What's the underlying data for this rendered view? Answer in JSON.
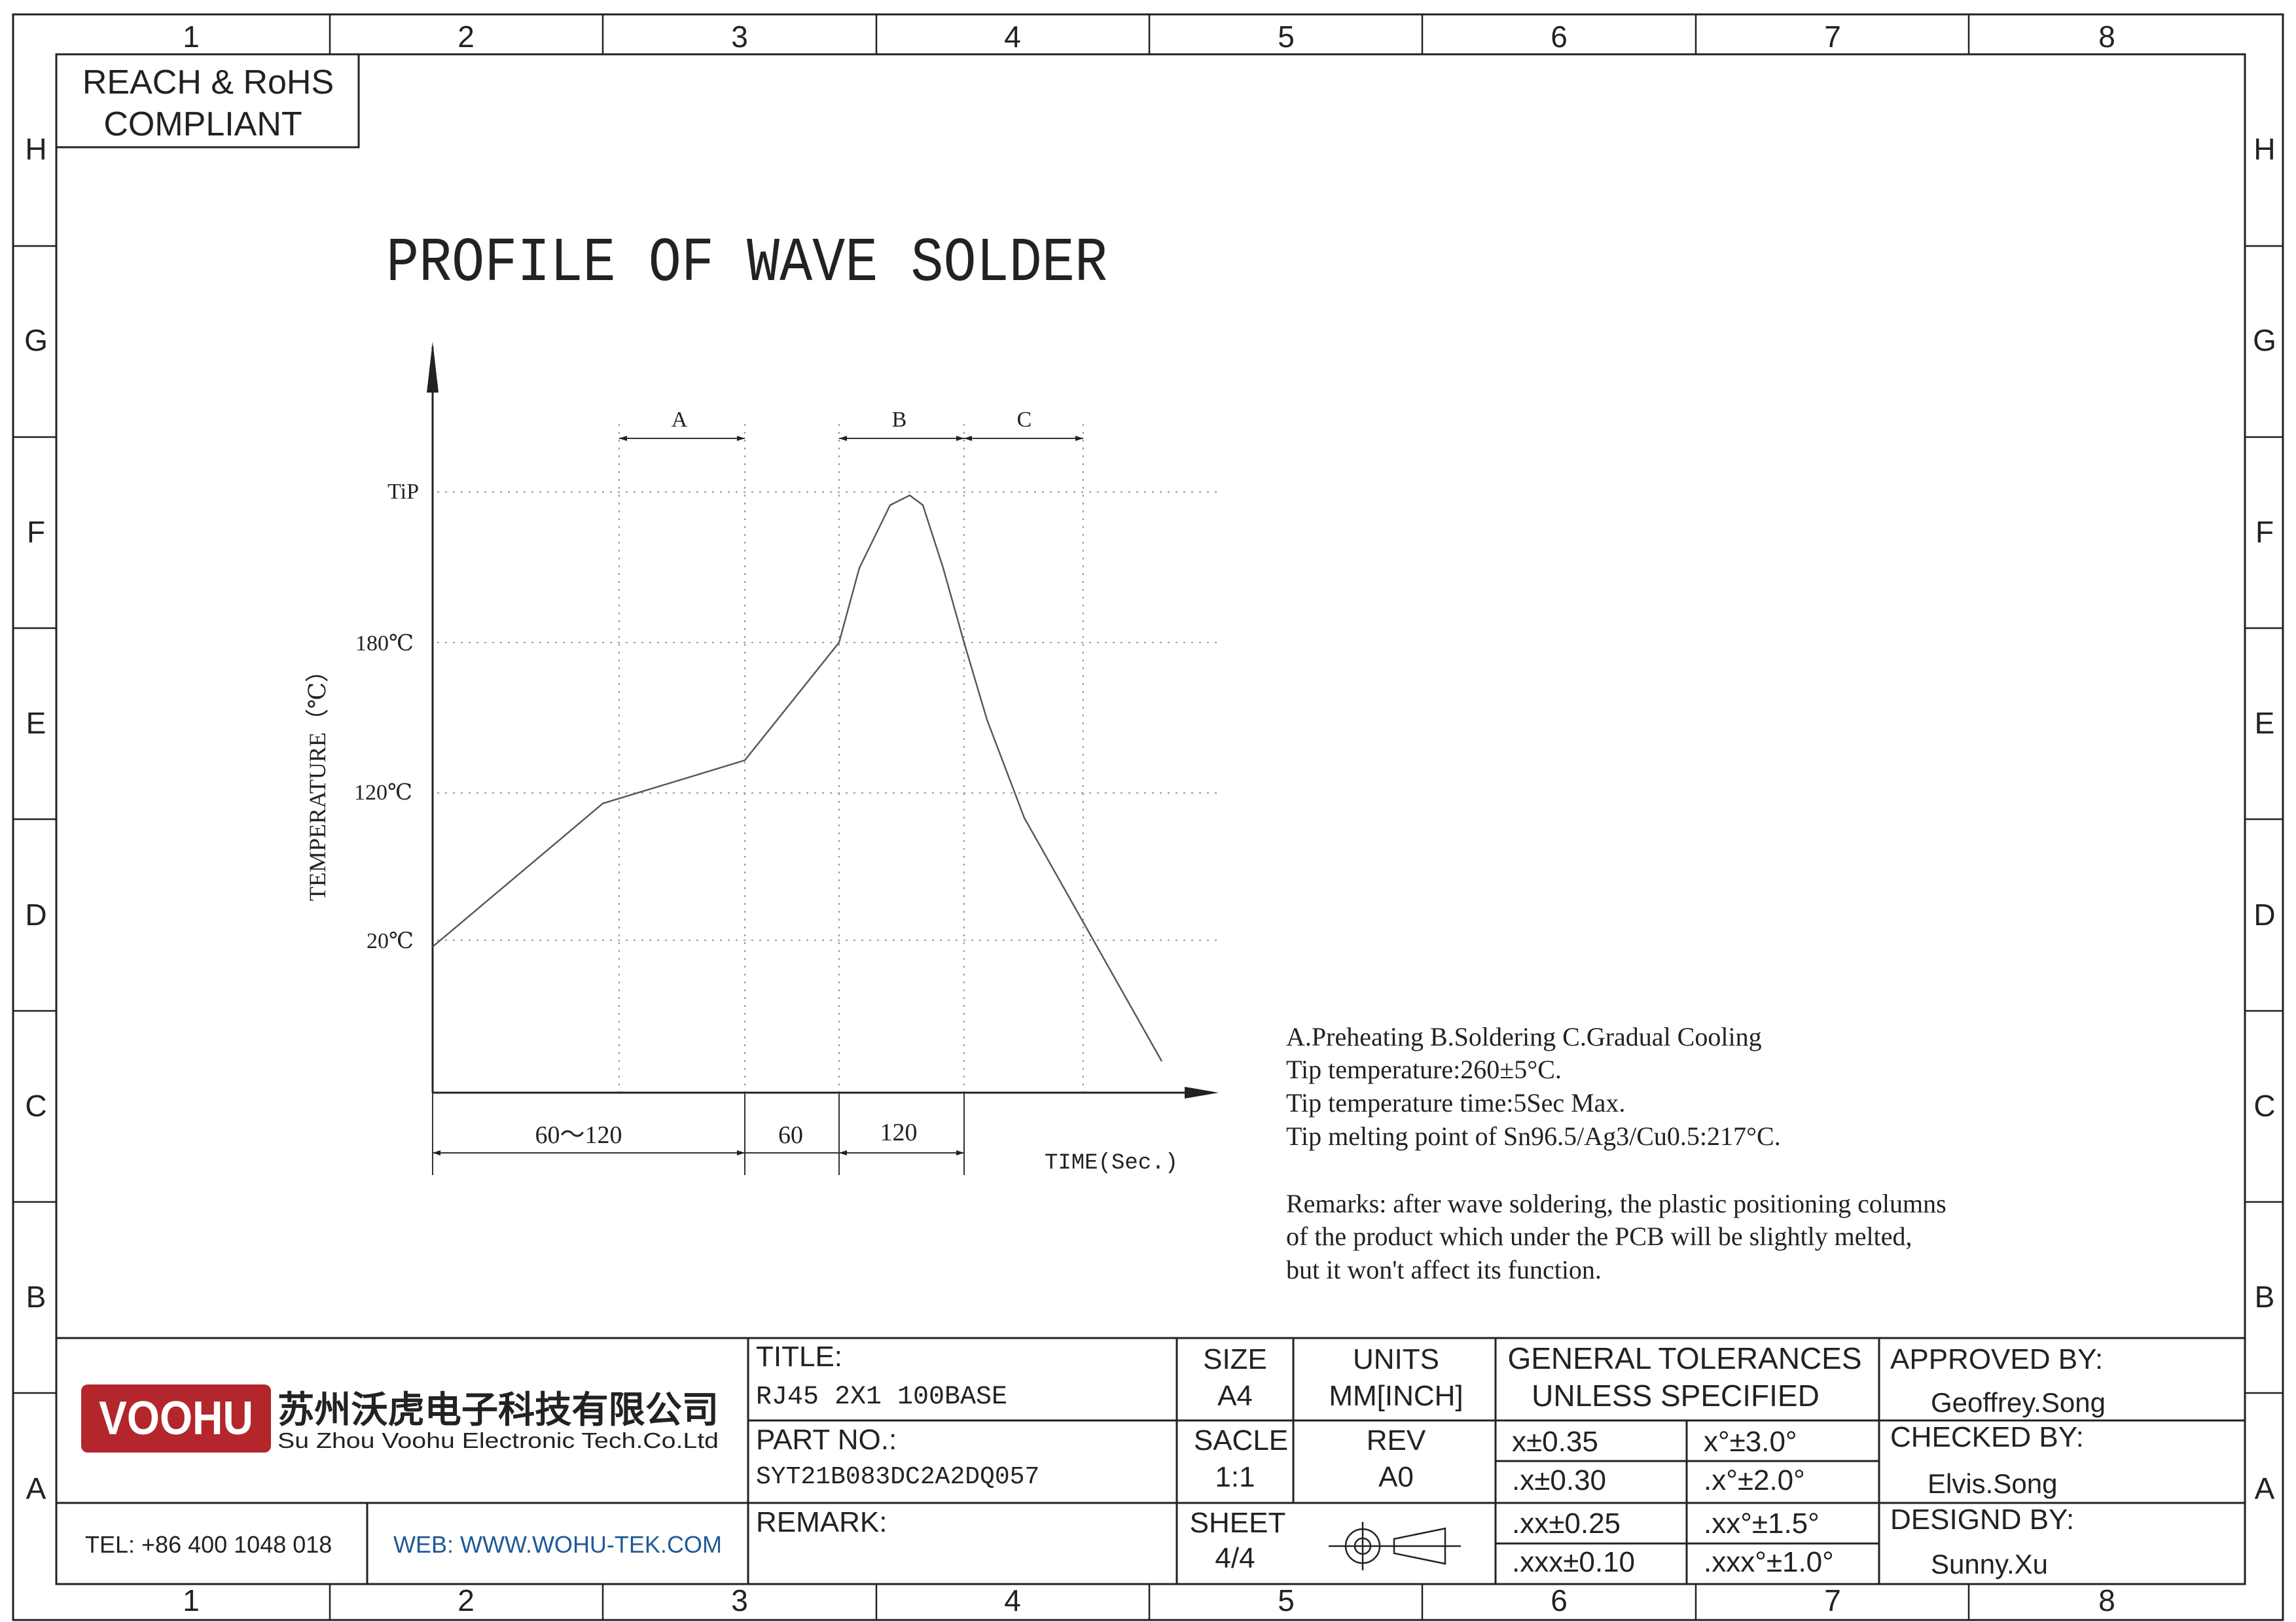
{
  "border": {
    "columns": [
      "1",
      "2",
      "3",
      "4",
      "5",
      "6",
      "7",
      "8"
    ],
    "rows": [
      "H",
      "G",
      "F",
      "E",
      "D",
      "C",
      "B",
      "A"
    ]
  },
  "compliance": [
    "REACH & RoHS",
    "COMPLIANT"
  ],
  "title": "PROFILE OF WAVE SOLDER",
  "profile": {
    "y_axis_label": "TEMPERATURE（℃）",
    "x_axis_label": "TIME(Sec.)",
    "y_ticks": [
      "TiP",
      "180℃",
      "120℃",
      "20℃"
    ],
    "zones": [
      "A",
      "B",
      "C"
    ],
    "spans": [
      "60～120",
      "60",
      "120"
    ],
    "line_color": "#555555"
  },
  "notes": [
    "A.Preheating  B.Soldering  C.Gradual Cooling",
    "Tip temperature:260±5°C.",
    "Tip temperature time:5Sec Max.",
    "Tip melting point of Sn96.5/Ag3/Cu0.5:217°C."
  ],
  "remarks": [
    "Remarks: after wave soldering, the plastic positioning columns",
    "of the product  which under the PCB will be slightly melted,",
    "but it won't affect its function."
  ],
  "title_block": {
    "logo": {
      "text": "VOOHU",
      "color": "#b3262b"
    },
    "company_cn": "苏州沃虎电子科技有限公司",
    "company_en": "Su Zhou Voohu Electronic Tech.Co.Ltd",
    "tel": "TEL: +86 400 1048 018",
    "web": "WEB: WWW.WOHU-TEK.COM",
    "web_color": "#1f5a96",
    "title_label": "TITLE:",
    "title_value": "RJ45 2X1 100BASE",
    "part_label": "PART NO.:",
    "part_value": "SYT21B083DC2A2DQ057",
    "remark_label": "REMARK:",
    "size_label": "SIZE",
    "size_value": "A4",
    "units_label": "UNITS",
    "units_value": "MM[INCH]",
    "scale_label": "SACLE",
    "scale_value": "1:1",
    "rev_label": "REV",
    "rev_value": "A0",
    "sheet_label": "SHEET",
    "sheet_value": "4/4",
    "tolerances_title": [
      "GENERAL TOLERANCES",
      "UNLESS SPECIFIED"
    ],
    "tolerances": [
      [
        "x±0.35",
        "x°±3.0°"
      ],
      [
        ".x±0.30",
        ".x°±2.0°"
      ],
      [
        ".xx±0.25",
        ".xx°±1.5°"
      ],
      [
        ".xxx±0.10",
        ".xxx°±1.0°"
      ]
    ],
    "approved_label": "APPROVED BY:",
    "approved_value": "Geoffrey.Song",
    "checked_label": "CHECKED BY:",
    "checked_value": "Elvis.Song",
    "designed_label": "DESIGND BY:",
    "designed_value": "Sunny.Xu"
  }
}
